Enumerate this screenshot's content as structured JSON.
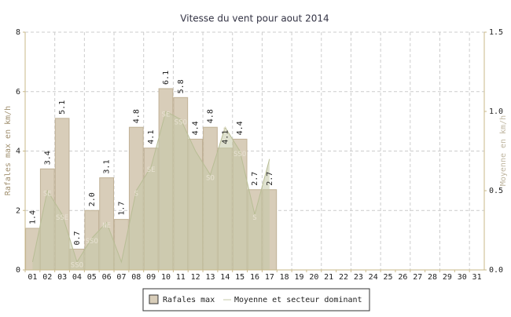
{
  "chart_data": {
    "type": "bar",
    "title": "Vitesse du vent pour aout 2014",
    "y_label": "Rafales max en km/h",
    "y2_label": "Moyenne en km/h",
    "categories": [
      "01",
      "02",
      "03",
      "04",
      "05",
      "06",
      "07",
      "08",
      "09",
      "10",
      "11",
      "12",
      "13",
      "14",
      "15",
      "16",
      "17",
      "18",
      "19",
      "20",
      "21",
      "22",
      "23",
      "24",
      "25",
      "26",
      "27",
      "28",
      "29",
      "30",
      "31"
    ],
    "series": [
      {
        "name": "Rafales max",
        "color": "#d8cdb9",
        "values": [
          1.4,
          3.4,
          5.1,
          0.7,
          2.0,
          3.1,
          1.7,
          4.8,
          4.1,
          6.1,
          5.8,
          4.4,
          4.8,
          4.1,
          4.4,
          2.7,
          2.7,
          null,
          null,
          null,
          null,
          null,
          null,
          null,
          null,
          null,
          null,
          null,
          null,
          null,
          null
        ],
        "value_labels": [
          "1.4",
          "3.4",
          "5.1",
          "0.7",
          "2.0",
          "3.1",
          "1.7",
          "4.8",
          "4.1",
          "6.1",
          "5.8",
          "4.4",
          "4.8",
          "4.1",
          "4.4",
          "2.7",
          "2.7",
          null,
          null,
          null,
          null,
          null,
          null,
          null,
          null,
          null,
          null,
          null,
          null,
          null,
          null
        ]
      },
      {
        "name": "Moyenne et secteur dominant",
        "color": "#c5c9a8",
        "axis": "y2",
        "type": "line",
        "values": [
          0.05,
          0.5,
          0.35,
          0.05,
          0.2,
          0.3,
          0.05,
          0.5,
          0.65,
          1.0,
          0.95,
          0.75,
          0.6,
          0.9,
          0.75,
          0.35,
          0.7,
          null,
          null,
          null,
          null,
          null,
          null,
          null,
          null,
          null,
          null,
          null,
          null,
          null,
          null
        ],
        "sector_labels": [
          null,
          "SE",
          "SSE",
          "SSO",
          "SSO",
          "NE",
          null,
          "S",
          "SE",
          "SE",
          "SSO",
          null,
          "SO",
          "S",
          "SSO",
          "S",
          null,
          null,
          null,
          null,
          null,
          null,
          null,
          null,
          null,
          null,
          null,
          null,
          null,
          null,
          null
        ]
      }
    ],
    "ylim": [
      0,
      8
    ],
    "yticks": [
      0,
      2,
      4,
      6,
      8
    ],
    "y2lim": [
      0,
      1.5
    ],
    "y2ticks": [
      {
        "value": 0,
        "label": "0.0"
      },
      {
        "value": 0.5,
        "label": "0.5"
      },
      {
        "value": 1,
        "label": "1.0"
      },
      {
        "value": 1.5,
        "label": "1.5"
      }
    ],
    "grid": true
  }
}
